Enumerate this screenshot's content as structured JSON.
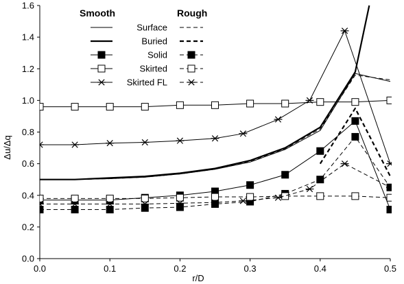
{
  "chart_data": {
    "type": "line",
    "xlabel": "r/D",
    "ylabel": "Δu/Δq",
    "xlim": [
      0,
      0.5
    ],
    "ylim": [
      0,
      1.6
    ],
    "xticks": [
      "0.0",
      "0.1",
      "0.2",
      "0.3",
      "0.4",
      "0.5"
    ],
    "yticks": [
      "0.0",
      "0.2",
      "0.4",
      "0.6",
      "0.8",
      "1.0",
      "1.2",
      "1.4",
      "1.6"
    ],
    "grid": false,
    "legend": {
      "placement": "top-left",
      "col_headers": [
        "Smooth",
        "Rough"
      ],
      "entries": [
        "Surface",
        "Buried",
        "Solid",
        "Skirted",
        "Skirted FL"
      ]
    },
    "series": [
      {
        "name": "Surface",
        "condition": "Smooth",
        "style": "solid",
        "width": 1,
        "marker": "none",
        "x": [
          0,
          0.05,
          0.1,
          0.15,
          0.2,
          0.25,
          0.3,
          0.35,
          0.4,
          0.45,
          0.5
        ],
        "y": [
          0.5,
          0.5,
          0.505,
          0.515,
          0.535,
          0.565,
          0.61,
          0.69,
          0.81,
          1.17,
          1.12
        ]
      },
      {
        "name": "Surface",
        "condition": "Rough",
        "style": "dashed",
        "width": 1,
        "marker": "none",
        "x": [
          0,
          0.05,
          0.1,
          0.15,
          0.2,
          0.25,
          0.3,
          0.35,
          0.4,
          0.45,
          0.5
        ],
        "y": [
          0.5,
          0.5,
          0.505,
          0.515,
          0.535,
          0.565,
          0.615,
          0.695,
          0.82,
          1.16,
          1.13
        ]
      },
      {
        "name": "Buried",
        "condition": "Smooth",
        "style": "solid",
        "width": 2.2,
        "marker": "none",
        "x": [
          0,
          0.05,
          0.1,
          0.15,
          0.2,
          0.25,
          0.3,
          0.35,
          0.4,
          0.45,
          0.47
        ],
        "y": [
          0.5,
          0.5,
          0.51,
          0.52,
          0.54,
          0.57,
          0.62,
          0.7,
          0.83,
          1.18,
          1.6
        ]
      },
      {
        "name": "Buried",
        "condition": "Rough",
        "style": "dashed",
        "width": 2.2,
        "marker": "none",
        "x": [
          0.4,
          0.45,
          0.5
        ],
        "y": [
          0.6,
          0.95,
          0.52
        ]
      },
      {
        "name": "Solid",
        "condition": "Smooth",
        "style": "solid",
        "width": 1,
        "marker": "filled-square",
        "x": [
          0,
          0.05,
          0.1,
          0.15,
          0.2,
          0.25,
          0.3,
          0.35,
          0.4,
          0.45,
          0.5
        ],
        "y": [
          0.37,
          0.37,
          0.37,
          0.385,
          0.4,
          0.425,
          0.465,
          0.53,
          0.68,
          0.87,
          0.31
        ]
      },
      {
        "name": "Solid",
        "condition": "Rough",
        "style": "dashed",
        "width": 1,
        "marker": "filled-square",
        "x": [
          0,
          0.05,
          0.1,
          0.15,
          0.2,
          0.25,
          0.3,
          0.35,
          0.4,
          0.45,
          0.5
        ],
        "y": [
          0.31,
          0.31,
          0.31,
          0.32,
          0.325,
          0.345,
          0.36,
          0.41,
          0.5,
          0.77,
          0.45
        ]
      },
      {
        "name": "Skirted",
        "condition": "Smooth",
        "style": "solid",
        "width": 1,
        "marker": "open-square",
        "x": [
          0,
          0.05,
          0.1,
          0.15,
          0.2,
          0.25,
          0.3,
          0.35,
          0.4,
          0.45,
          0.5
        ],
        "y": [
          0.96,
          0.96,
          0.96,
          0.96,
          0.97,
          0.97,
          0.98,
          0.98,
          0.99,
          0.99,
          1.0
        ]
      },
      {
        "name": "Skirted",
        "condition": "Rough",
        "style": "dashed",
        "width": 1,
        "marker": "open-square",
        "x": [
          0,
          0.05,
          0.1,
          0.15,
          0.2,
          0.25,
          0.3,
          0.35,
          0.4,
          0.45,
          0.5
        ],
        "y": [
          0.38,
          0.38,
          0.38,
          0.38,
          0.385,
          0.39,
          0.39,
          0.395,
          0.395,
          0.395,
          0.385
        ]
      },
      {
        "name": "Skirted FL",
        "condition": "Smooth",
        "style": "solid",
        "width": 1,
        "marker": "asterisk",
        "x": [
          0,
          0.05,
          0.1,
          0.15,
          0.2,
          0.25,
          0.29,
          0.34,
          0.385,
          0.435,
          0.5
        ],
        "y": [
          0.72,
          0.72,
          0.73,
          0.735,
          0.745,
          0.76,
          0.79,
          0.88,
          1.0,
          1.44,
          0.6
        ]
      },
      {
        "name": "Skirted FL",
        "condition": "Rough",
        "style": "dashed",
        "width": 1,
        "marker": "asterisk",
        "x": [
          0,
          0.05,
          0.1,
          0.15,
          0.2,
          0.25,
          0.29,
          0.34,
          0.385,
          0.435,
          0.5
        ],
        "y": [
          0.345,
          0.345,
          0.345,
          0.345,
          0.35,
          0.355,
          0.365,
          0.385,
          0.44,
          0.6,
          0.45
        ]
      }
    ]
  }
}
